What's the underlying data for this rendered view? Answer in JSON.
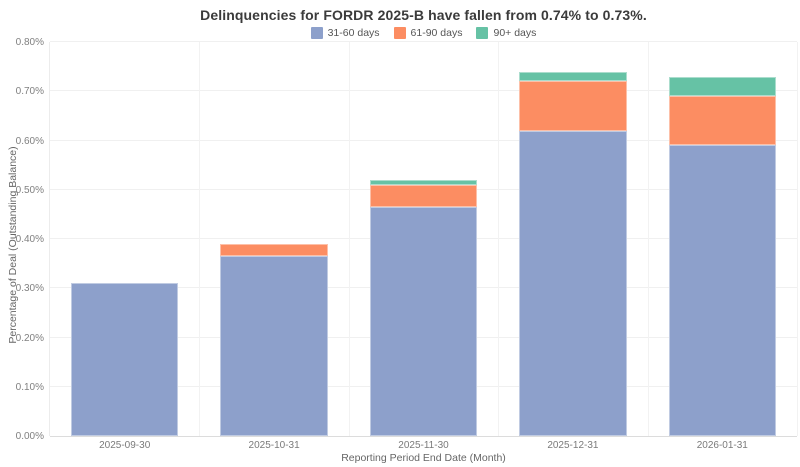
{
  "chart_data": {
    "type": "bar",
    "stacked": true,
    "title": "Delinquencies for FORDR 2025-B have fallen from 0.74% to 0.73%.",
    "xlabel": "Reporting Period End Date (Month)",
    "ylabel": "Percentage of Deal (Outstanding Balance)",
    "categories": [
      "2025-09-30",
      "2025-10-31",
      "2025-11-30",
      "2025-12-31",
      "2026-01-31"
    ],
    "series": [
      {
        "name": "31-60 days",
        "color": "#8da0cb",
        "values": [
          0.31,
          0.365,
          0.465,
          0.62,
          0.59
        ]
      },
      {
        "name": "61-90 days",
        "color": "#fc8d62",
        "values": [
          0.0,
          0.025,
          0.045,
          0.1,
          0.1
        ]
      },
      {
        "name": "90+ days",
        "color": "#66c2a5",
        "values": [
          0.0,
          0.0,
          0.01,
          0.02,
          0.04
        ]
      }
    ],
    "totals": [
      0.31,
      0.39,
      0.52,
      0.74,
      0.73
    ],
    "ylim": [
      0,
      0.8
    ],
    "ytick_step": 0.1,
    "ytick_labels": [
      "0.00%",
      "0.10%",
      "0.20%",
      "0.30%",
      "0.40%",
      "0.50%",
      "0.60%",
      "0.70%",
      "0.80%"
    ],
    "legend_position": "top-center",
    "grid": true
  },
  "colors": {
    "background": "#ffffff",
    "title_text": "#3b3b3b",
    "tick_text": "#7a7a7a",
    "axis_title_text": "#666666",
    "gridline": "#f0f0f0",
    "axis_line": "#dcdcdc"
  }
}
